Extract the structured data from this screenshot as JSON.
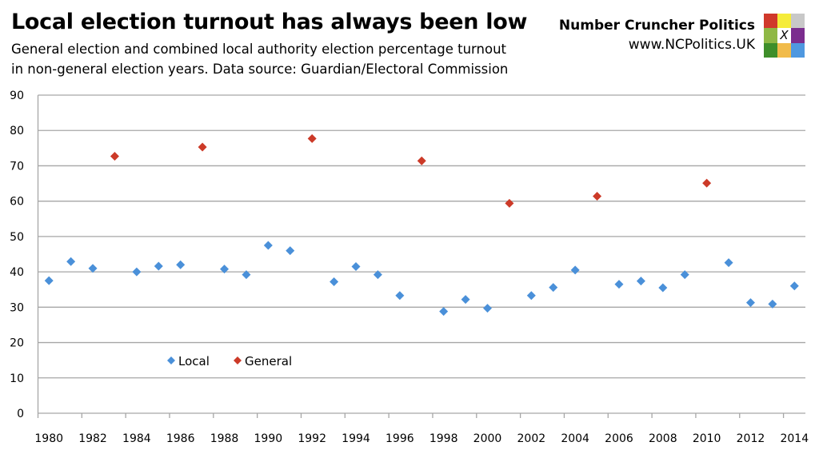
{
  "header": {
    "title": "Local election turnout has always been low",
    "subtitle_line1": "General election and combined local authority election percentage turnout",
    "subtitle_line2": "in non-general election years. Data source: Guardian/Electoral Commission"
  },
  "brand": {
    "name": "Number Cruncher Politics",
    "url": "www.NCPolitics.UK",
    "logo_mark": "X",
    "logo_colors": [
      "#d0392b",
      "#f5ec3a",
      "#c8c8c8",
      "#8fb845",
      "#ffffff",
      "#7b2d8e",
      "#3e8e2a",
      "#f1bb4a",
      "#4f98e0"
    ]
  },
  "chart_data": {
    "type": "scatter",
    "categories": [
      1980,
      1981,
      1982,
      1983,
      1984,
      1985,
      1986,
      1987,
      1988,
      1989,
      1990,
      1991,
      1992,
      1993,
      1994,
      1995,
      1996,
      1997,
      1998,
      1999,
      2000,
      2001,
      2002,
      2003,
      2004,
      2005,
      2006,
      2007,
      2008,
      2009,
      2010,
      2011,
      2012,
      2013,
      2014
    ],
    "x_tick_labels": [
      "1980",
      "1982",
      "1984",
      "1986",
      "1988",
      "1990",
      "1992",
      "1994",
      "1996",
      "1998",
      "2000",
      "2002",
      "2004",
      "2006",
      "2008",
      "2010",
      "2012",
      "2014"
    ],
    "y_tick_labels": [
      "0",
      "10",
      "20",
      "30",
      "40",
      "50",
      "60",
      "70",
      "80",
      "90"
    ],
    "ylim": [
      0,
      90
    ],
    "grid": "horizontal",
    "legend_position": "bottom-left-inside",
    "marker": "diamond",
    "series": [
      {
        "name": "Local",
        "color": "#4a90d9",
        "points": [
          [
            1980,
            37.5
          ],
          [
            1981,
            42.9
          ],
          [
            1982,
            41.0
          ],
          [
            1984,
            40.0
          ],
          [
            1985,
            41.6
          ],
          [
            1986,
            42.0
          ],
          [
            1988,
            40.8
          ],
          [
            1989,
            39.2
          ],
          [
            1990,
            47.5
          ],
          [
            1991,
            46.0
          ],
          [
            1993,
            37.2
          ],
          [
            1994,
            41.5
          ],
          [
            1995,
            39.2
          ],
          [
            1996,
            33.3
          ],
          [
            1998,
            28.8
          ],
          [
            1999,
            32.2
          ],
          [
            2000,
            29.7
          ],
          [
            2002,
            33.3
          ],
          [
            2003,
            35.6
          ],
          [
            2004,
            40.5
          ],
          [
            2006,
            36.5
          ],
          [
            2007,
            37.4
          ],
          [
            2008,
            35.5
          ],
          [
            2009,
            39.2
          ],
          [
            2011,
            42.6
          ],
          [
            2012,
            31.3
          ],
          [
            2013,
            30.9
          ],
          [
            2014,
            36.0
          ]
        ]
      },
      {
        "name": "General",
        "color": "#cc3a28",
        "points": [
          [
            1983,
            72.7
          ],
          [
            1987,
            75.3
          ],
          [
            1992,
            77.7
          ],
          [
            1997,
            71.4
          ],
          [
            2001,
            59.4
          ],
          [
            2005,
            61.4
          ],
          [
            2010,
            65.1
          ]
        ]
      }
    ]
  }
}
